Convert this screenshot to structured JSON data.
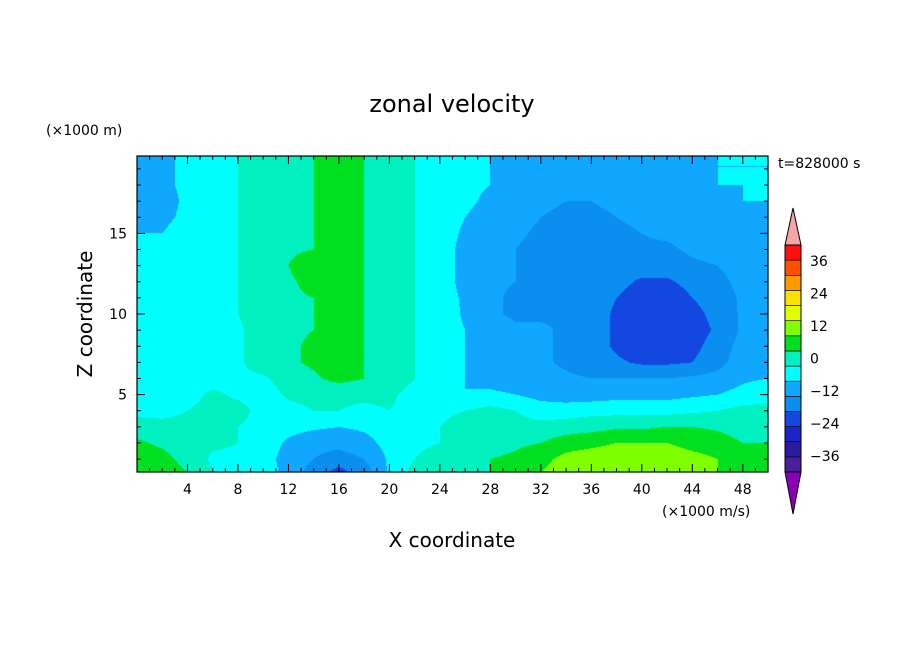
{
  "chart_data": {
    "type": "heatmap",
    "title": "zonal velocity",
    "xlabel": "X coordinate",
    "ylabel": "Z coordinate",
    "x_unit": "(×1000 m/s)",
    "y_unit": "(×1000 m)",
    "time_label": "t=828000 s",
    "xlim": [
      0,
      50
    ],
    "ylim": [
      0.2,
      19.8
    ],
    "x_ticks": [
      4,
      8,
      12,
      16,
      20,
      24,
      28,
      32,
      36,
      40,
      44,
      48
    ],
    "y_ticks": [
      5,
      10,
      15
    ],
    "colorbar": {
      "levels": [
        -42,
        -36,
        -30,
        -24,
        -18,
        -12,
        -6,
        0,
        6,
        12,
        18,
        24,
        30,
        36,
        42
      ],
      "colors": [
        "#4a1f9c",
        "#2a1ca0",
        "#1a24c8",
        "#1446e0",
        "#0a8ef0",
        "#10a8ff",
        "#00ffff",
        "#00f0c0",
        "#00e020",
        "#80ff00",
        "#e0ff00",
        "#ffe000",
        "#ff9900",
        "#ff5000",
        "#ff1010"
      ],
      "under_color": "#8a00b8",
      "over_color": "#f4a6a6",
      "tick_values": [
        36,
        24,
        12,
        0,
        -12,
        -24,
        -36
      ],
      "tick_labels": [
        "36",
        "24",
        "12",
        "0",
        "−12",
        "−24",
        "−36"
      ]
    },
    "field_grid": {
      "x": [
        0,
        2,
        4,
        6,
        8,
        10,
        12,
        14,
        16,
        18,
        20,
        22,
        24,
        26,
        28,
        30,
        32,
        34,
        36,
        38,
        40,
        42,
        44,
        46,
        48,
        50
      ],
      "z": [
        0.2,
        1,
        2,
        3,
        4,
        5,
        6,
        7,
        8,
        9,
        10,
        11,
        12,
        13,
        14,
        15,
        16,
        17,
        18,
        19,
        19.8
      ],
      "values": [
        [
          9,
          9,
          6,
          0,
          0,
          -3,
          -8,
          -15,
          -20,
          -15,
          -5,
          2,
          2,
          5,
          6,
          8,
          12,
          15,
          18,
          18,
          18,
          16,
          15,
          12,
          6,
          6
        ],
        [
          8,
          8,
          4,
          -1,
          -1,
          -4,
          -8,
          -12,
          -15,
          -12,
          -5,
          0,
          2,
          4,
          6,
          7,
          10,
          14,
          16,
          17,
          18,
          16,
          14,
          12,
          6,
          6
        ],
        [
          7,
          5,
          2,
          1,
          0,
          -3,
          -7,
          -10,
          -10,
          -8,
          -4,
          -1,
          0,
          2,
          4,
          5,
          6,
          9,
          10,
          12,
          12,
          12,
          10,
          9,
          6,
          6
        ],
        [
          3,
          2,
          2,
          2,
          0,
          -2,
          -4,
          -5,
          -6,
          -5,
          -3,
          -2,
          0,
          2,
          3,
          2,
          2,
          3,
          4,
          5,
          5,
          6,
          6,
          5,
          3,
          4
        ],
        [
          -2,
          -2,
          0,
          2,
          2,
          -2,
          -2,
          0,
          0,
          -1,
          0,
          -2,
          -1,
          0,
          2,
          0,
          -3,
          -3,
          -2,
          -2,
          -2,
          -2,
          -1,
          0,
          2,
          2
        ],
        [
          -6,
          -5,
          -2,
          1,
          -1,
          -3,
          1,
          2,
          1,
          1,
          1,
          -2,
          -5,
          -6,
          -5,
          -6,
          -8,
          -9,
          -9,
          -8,
          -8,
          -8,
          -7,
          -6,
          -4,
          -2
        ],
        [
          -6,
          -6,
          -4,
          -2,
          -1,
          -1,
          3,
          5,
          8,
          6,
          4,
          0,
          -2,
          -6,
          -8,
          -9,
          -10,
          -11,
          -12,
          -12,
          -12,
          -12,
          -11,
          -10,
          -7,
          -6
        ],
        [
          -6,
          -6,
          -4,
          -3,
          -1,
          3,
          5,
          7,
          10,
          6,
          5,
          0,
          -2,
          -6,
          -8,
          -10,
          -11,
          -13,
          -15,
          -17,
          -19,
          -19,
          -18,
          -14,
          -9,
          -7
        ],
        [
          -6,
          -6,
          -4,
          -3,
          -1,
          3,
          5,
          7,
          7,
          6,
          5,
          0,
          -2,
          -6,
          -8,
          -11,
          -11,
          -13,
          -15,
          -19,
          -22,
          -21,
          -20,
          -15,
          -10,
          -8
        ],
        [
          -5,
          -5,
          -4,
          -3,
          -1,
          3,
          5,
          6,
          6,
          6,
          5,
          0,
          -2,
          -6,
          -9,
          -11,
          -11,
          -13,
          -15,
          -19,
          -21,
          -22,
          -21,
          -17,
          -11,
          -8
        ],
        [
          -6,
          -6,
          -4,
          -2,
          0,
          3,
          5,
          6,
          6,
          6,
          4,
          0,
          -2,
          -7,
          -11,
          -13,
          -13,
          -13,
          -15,
          -19,
          -21,
          -22,
          -20,
          -16,
          -11,
          -8
        ],
        [
          -6,
          -6,
          -4,
          -2,
          0,
          4,
          5,
          6,
          6,
          6,
          4,
          0,
          -3,
          -7,
          -11,
          -13,
          -13,
          -13,
          -15,
          -18,
          -21,
          -22,
          -18,
          -15,
          -11,
          -8
        ],
        [
          -6,
          -6,
          -4,
          -2,
          0,
          3,
          5,
          8,
          8,
          6,
          4,
          0,
          -3,
          -8,
          -11,
          -12,
          -13,
          -14,
          -15,
          -16,
          -19,
          -19,
          -16,
          -14,
          -10,
          -8
        ],
        [
          -6,
          -6,
          -4,
          -2,
          0,
          3,
          6,
          10,
          10,
          6,
          4,
          0,
          -3,
          -8,
          -11,
          -12,
          -14,
          -15,
          -16,
          -16,
          -15,
          -15,
          -13,
          -12,
          -9,
          -8
        ],
        [
          -6,
          -6,
          -4,
          -2,
          0,
          3,
          5,
          6,
          6,
          6,
          4,
          0,
          -3,
          -8,
          -11,
          -12,
          -14,
          -15,
          -15,
          -14,
          -13,
          -13,
          -11,
          -10,
          -8,
          -7
        ],
        [
          -6,
          -6,
          -4,
          -2,
          0,
          3,
          5,
          6,
          6,
          6,
          4,
          0,
          -3,
          -7,
          -10,
          -11,
          -13,
          -14,
          -14,
          -13,
          -12,
          -11,
          -10,
          -9,
          -7,
          -6
        ],
        [
          -10,
          -7,
          -5,
          -2,
          0,
          3,
          5,
          6,
          6,
          6,
          4,
          0,
          -3,
          -6,
          -8,
          -10,
          -12,
          -13,
          -13,
          -12,
          -11,
          -10,
          -9,
          -8,
          -7,
          -6
        ],
        [
          -11,
          -8,
          -5,
          -2,
          0,
          3,
          5,
          6,
          6,
          6,
          4,
          0,
          -3,
          -5,
          -7,
          -9,
          -11,
          -12,
          -12,
          -11,
          -10,
          -9,
          -8,
          -7,
          -6,
          -6
        ],
        [
          -10,
          -7,
          -5,
          -2,
          0,
          3,
          5,
          6,
          6,
          6,
          4,
          0,
          -3,
          -5,
          -6,
          -8,
          -10,
          -11,
          -11,
          -10,
          -9,
          -8,
          -7,
          -6,
          -6,
          -6
        ],
        [
          -9,
          -7,
          -5,
          -2,
          0,
          3,
          5,
          6,
          6,
          6,
          4,
          0,
          -3,
          -5,
          -6,
          -7,
          -9,
          -10,
          -10,
          -9,
          -8,
          -8,
          -7,
          -6,
          -6,
          -6
        ],
        [
          -9,
          -7,
          -5,
          -2,
          0,
          3,
          5,
          6,
          6,
          6,
          4,
          0,
          -3,
          -5,
          -6,
          -7,
          -8,
          -9,
          -9,
          -9,
          -8,
          -8,
          -7,
          -6,
          -6,
          -6
        ]
      ]
    }
  }
}
